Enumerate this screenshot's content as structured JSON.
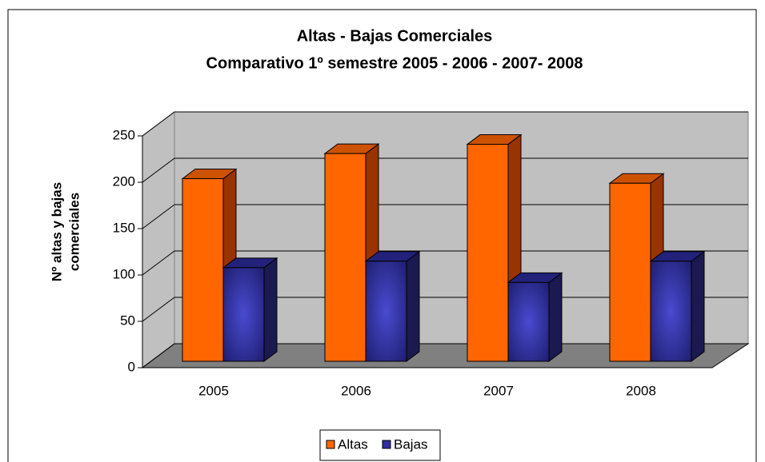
{
  "chart_data": {
    "type": "bar3d",
    "title": "Altas - Bajas Comerciales",
    "subtitle": "Comparativo 1º semestre 2005 - 2006 - 2007- 2008",
    "y_label": [
      "Nº altas y bajas",
      "comerciales"
    ],
    "categories": [
      "2005",
      "2006",
      "2007",
      "2008"
    ],
    "series": [
      {
        "name": "Altas",
        "color": "#ff6600",
        "values": [
          197,
          224,
          234,
          192
        ]
      },
      {
        "name": "Bajas",
        "color": "#2e2e9e",
        "values": [
          101,
          108,
          85,
          108
        ]
      }
    ],
    "ylim": [
      0,
      250
    ],
    "yticks": [
      0,
      50,
      100,
      150,
      200,
      250
    ],
    "grid": true,
    "legend": "bottom"
  }
}
